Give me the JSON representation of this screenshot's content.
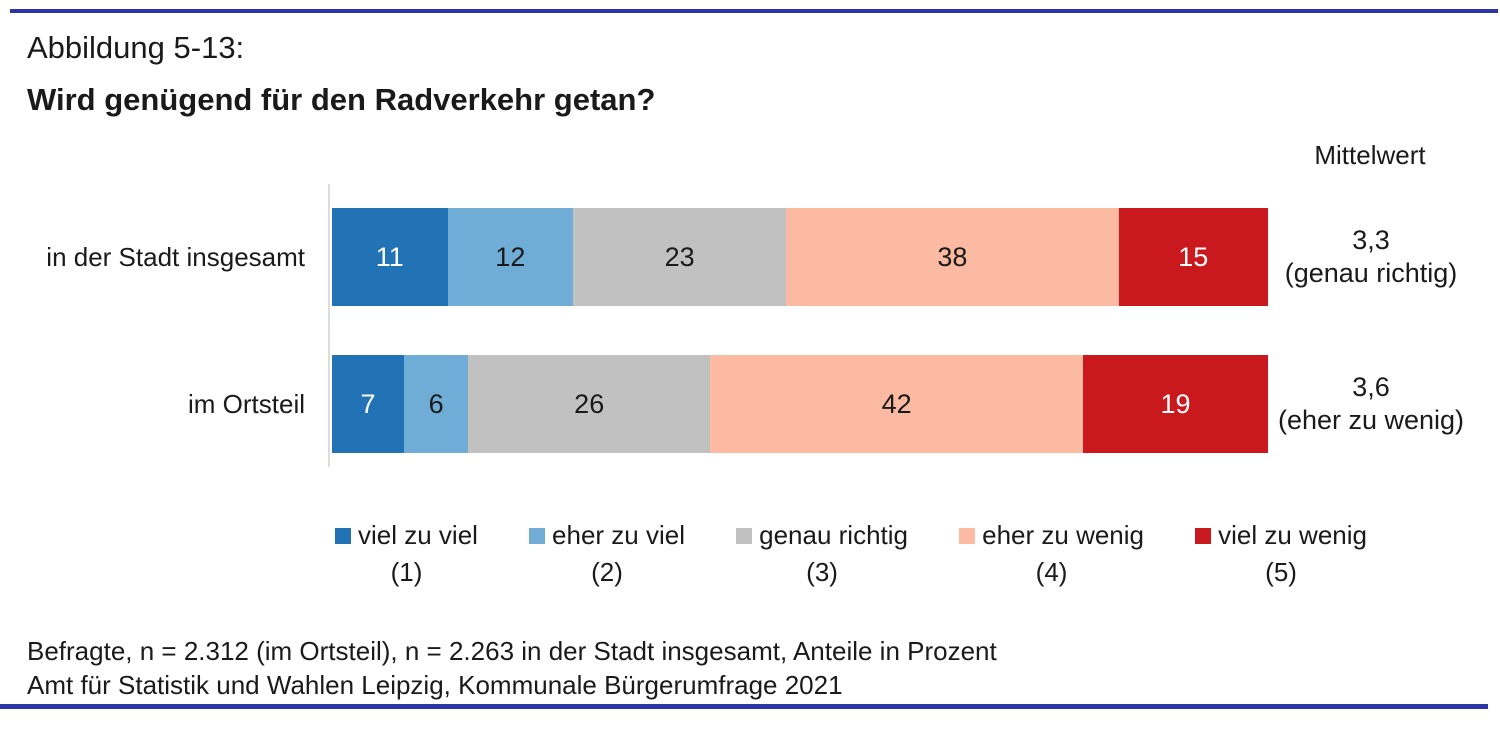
{
  "header": {
    "figure_label": "Abbildung 5-13:",
    "title": "Wird genügend für den Radverkehr getan?"
  },
  "mittelwert_header": "Mittelwert",
  "colors": {
    "rule_navy": "#2b35a3",
    "axis_gray": "#dcdcdc",
    "text_dark": "#1a1a1a"
  },
  "chart_data": {
    "type": "bar",
    "orientation": "horizontal",
    "stacked": true,
    "unit": "Prozent",
    "xlim": [
      0,
      100
    ],
    "grid": false,
    "legend_position": "bottom",
    "categories": [
      "in der Stadt insgesamt",
      "im Ortsteil"
    ],
    "series": [
      {
        "name": "viel zu viel",
        "scale_number": "(1)",
        "color": "#2272b6",
        "value_text_color": "#ffffff",
        "values": [
          11,
          7
        ]
      },
      {
        "name": "eher zu viel",
        "scale_number": "(2)",
        "color": "#6fadd6",
        "value_text_color": "#1a1a1a",
        "values": [
          12,
          6
        ]
      },
      {
        "name": "genau richtig",
        "scale_number": "(3)",
        "color": "#c1c1c1",
        "value_text_color": "#1a1a1a",
        "values": [
          23,
          26
        ]
      },
      {
        "name": "eher zu wenig",
        "scale_number": "(4)",
        "color": "#fbbaa1",
        "value_text_color": "#1a1a1a",
        "values": [
          38,
          42
        ]
      },
      {
        "name": "viel zu wenig",
        "scale_number": "(5)",
        "color": "#c9181e",
        "value_text_color": "#ffffff",
        "values": [
          15,
          19
        ]
      }
    ],
    "mittelwert": [
      {
        "value": "3,3",
        "note": "(genau richtig)"
      },
      {
        "value": "3,6",
        "note": "(eher zu wenig)"
      }
    ]
  },
  "footer": {
    "line1": "Befragte, n = 2.312 (im Ortsteil), n = 2.263 in der Stadt insgesamt, Anteile in Prozent",
    "line2": "Amt für Statistik und Wahlen Leipzig, Kommunale Bürgerumfrage 2021"
  }
}
